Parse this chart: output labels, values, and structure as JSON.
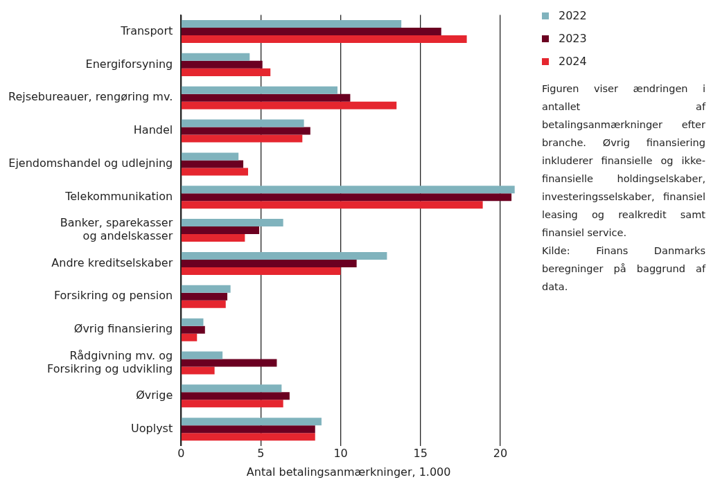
{
  "chart_data": {
    "type": "bar",
    "orientation": "horizontal",
    "xlabel": "Antal betalingsanmærkninger, 1.000",
    "categories": [
      "Transport",
      "Energiforsyning",
      "Rejsebureauer, rengøring mv.",
      "Handel",
      "Ejendomshandel og udlejning",
      "Telekommunikation",
      "Banker, sparekasser og andelskasser",
      "Andre kreditselskaber",
      "Forsikring og pension",
      "Øvrig finansiering",
      "Rådgivning mv. og Forsikring og udvikling",
      "Øvrige",
      "Uoplyst"
    ],
    "series": [
      {
        "name": "2022",
        "color": "#80b3bd",
        "values": [
          13.8,
          4.3,
          9.8,
          7.7,
          3.6,
          20.9,
          6.4,
          12.9,
          3.1,
          1.4,
          2.6,
          6.3,
          8.8
        ]
      },
      {
        "name": "2023",
        "color": "#6b0021",
        "values": [
          16.3,
          5.1,
          10.6,
          8.1,
          3.9,
          20.7,
          4.9,
          11.0,
          2.9,
          1.5,
          6.0,
          6.8,
          8.4
        ]
      },
      {
        "name": "2024",
        "color": "#e5262f",
        "values": [
          17.9,
          5.6,
          13.5,
          7.6,
          4.2,
          18.9,
          4.0,
          10.0,
          2.8,
          1.0,
          2.1,
          6.4,
          8.4
        ]
      }
    ],
    "xlim": [
      0,
      21
    ],
    "xticks": [
      0,
      5,
      10,
      15,
      20
    ],
    "grid": "x",
    "legend": "right",
    "annotations": [
      "Figuren viser ændringen i antallet af betalingsanmærkninger efter branche. Øvrig finansiering inkluderer finansielle og ikke-finansielle holdingselskaber, investeringsselskaber, finansiel leasing og realkredit samt finansiel service.",
      "Kilde: Finans Danmarks beregninger på baggrund af data."
    ]
  }
}
